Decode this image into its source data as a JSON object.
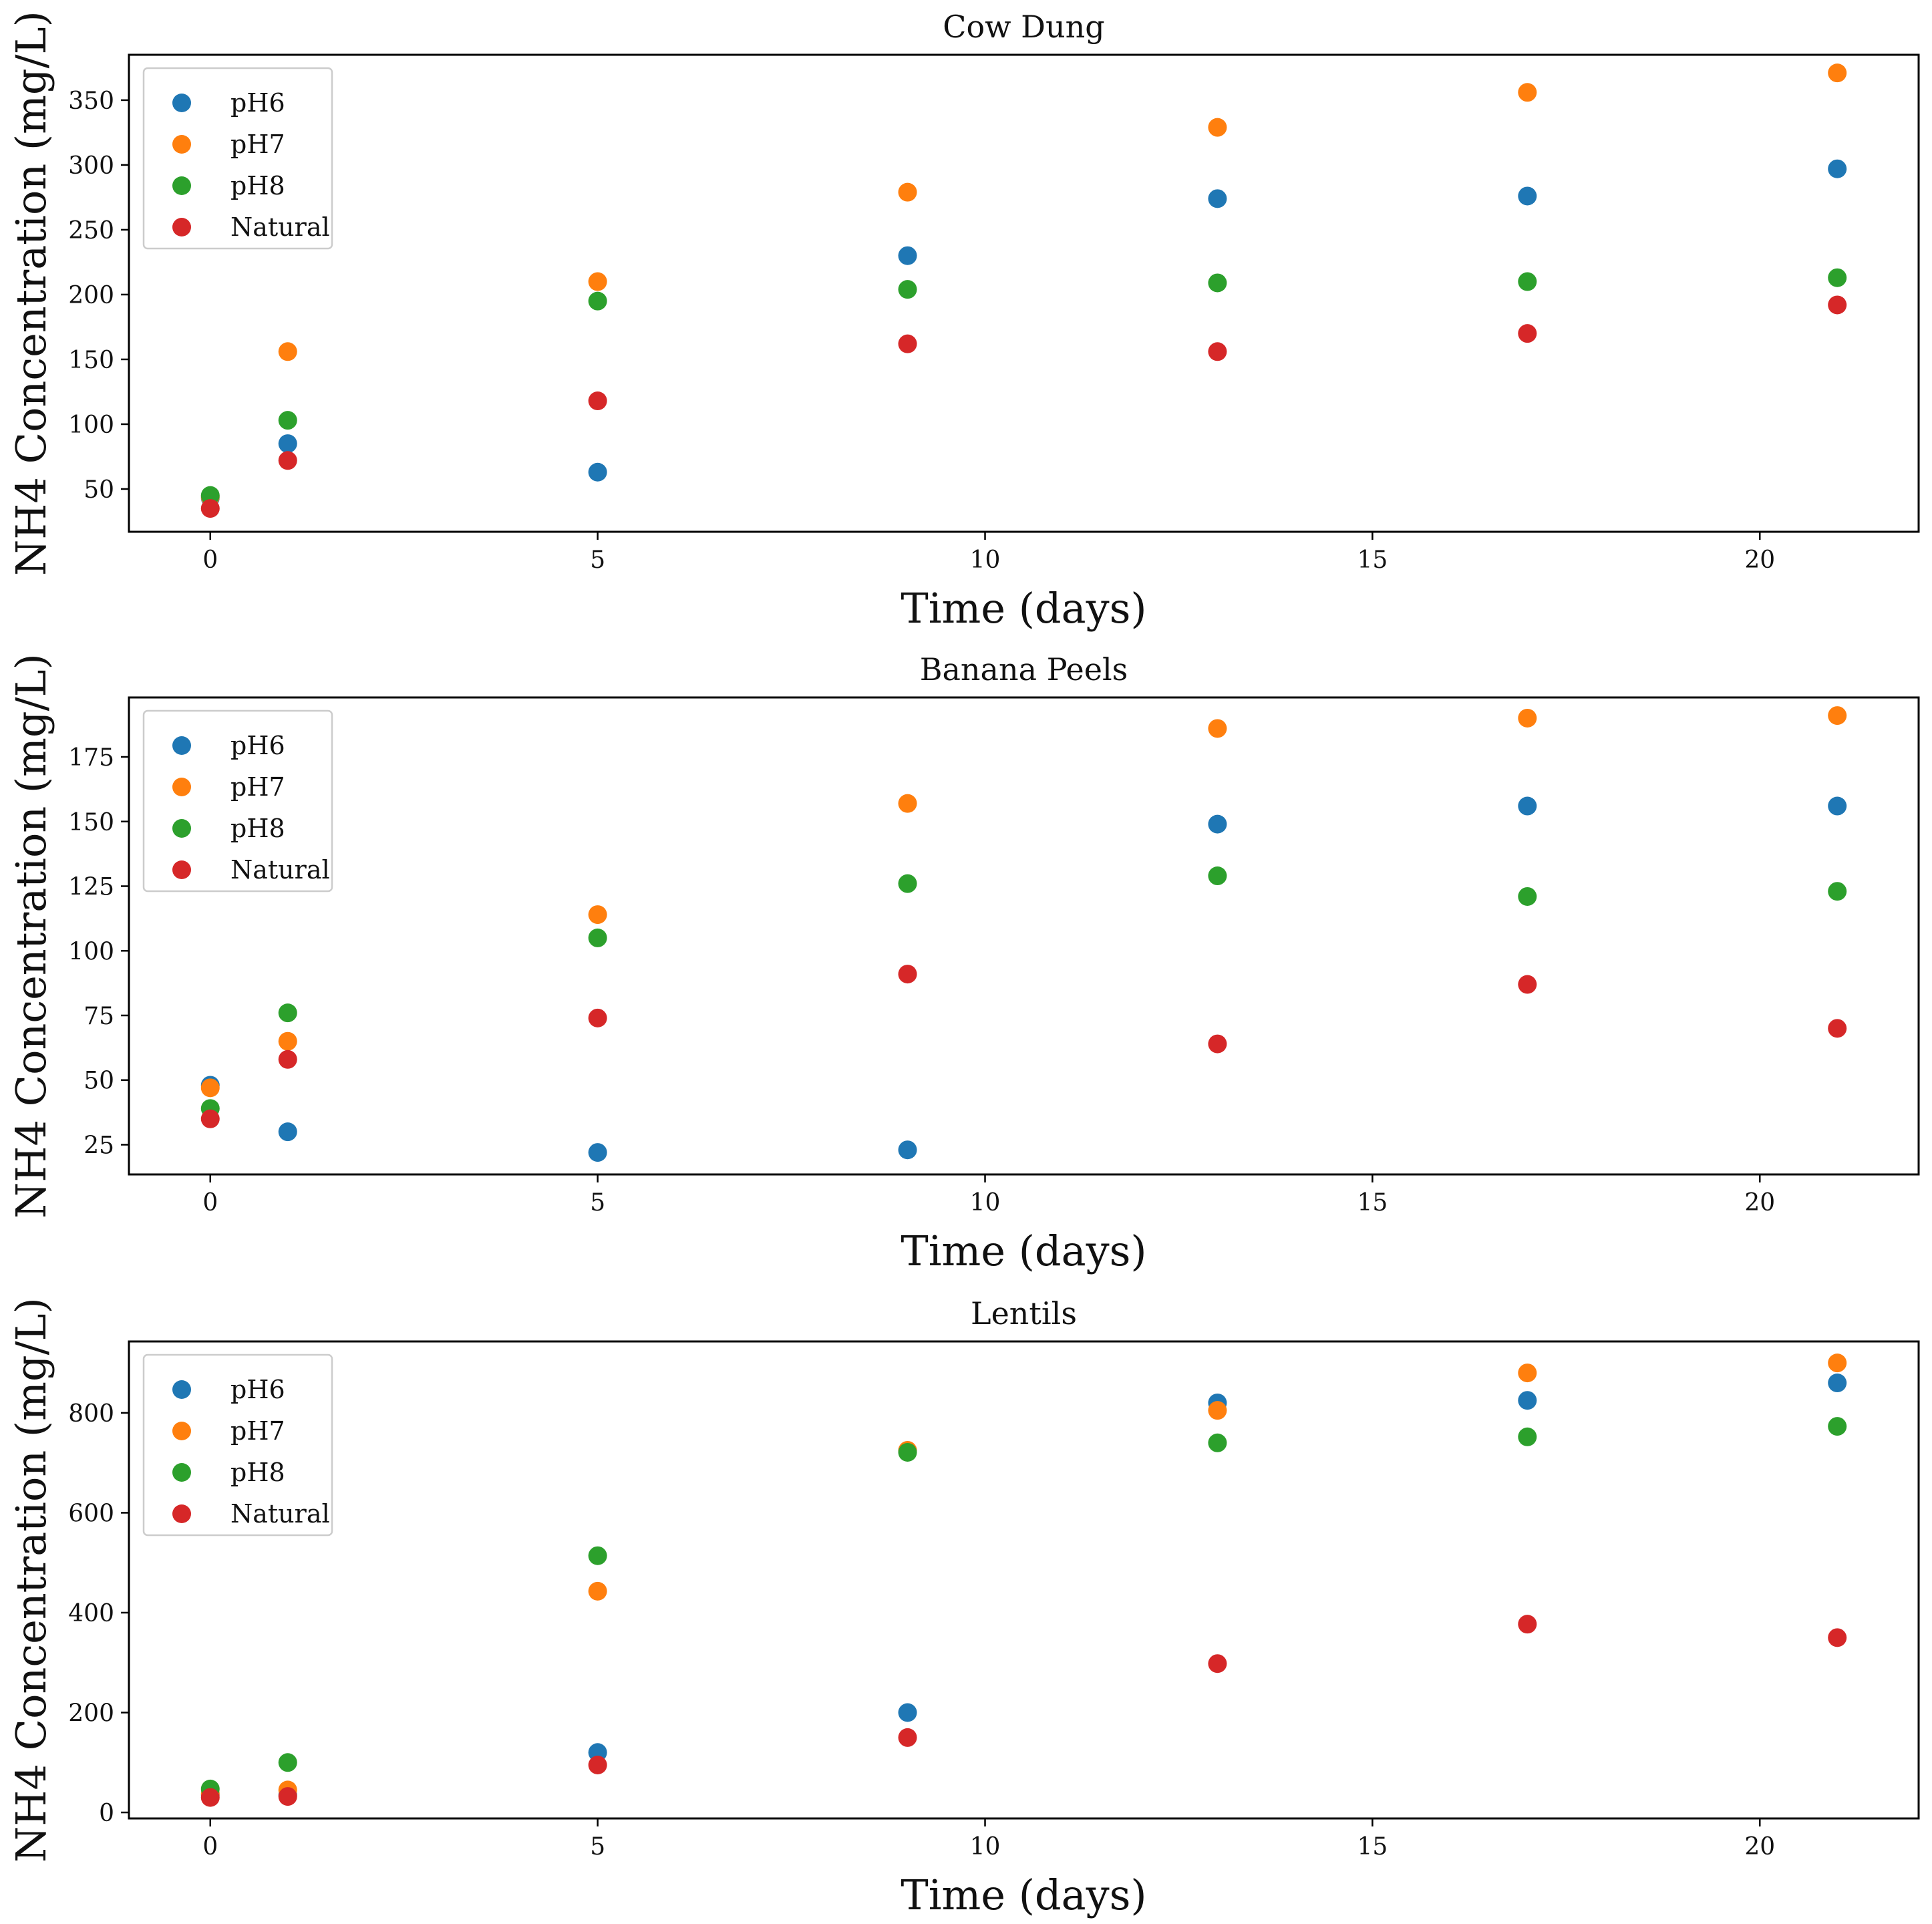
{
  "chart_data": [
    {
      "type": "scatter",
      "title": "Cow Dung",
      "xlabel": "Time (days)",
      "ylabel": "NH4 Concentration (mg/L)",
      "xlim": [
        -1.05,
        22.05
      ],
      "ylim": [
        17,
        385
      ],
      "xticks": [
        0,
        5,
        10,
        15,
        20
      ],
      "yticks": [
        50,
        100,
        150,
        200,
        250,
        300,
        350
      ],
      "legend_position": "top-left",
      "x": [
        0,
        1,
        5,
        9,
        13,
        17,
        21
      ],
      "series": [
        {
          "name": "pH6",
          "color": "#1f77b4",
          "values": [
            43,
            85,
            63,
            230,
            274,
            276,
            297
          ]
        },
        {
          "name": "pH7",
          "color": "#ff7f0e",
          "values": [
            44,
            156,
            210,
            279,
            329,
            356,
            371
          ]
        },
        {
          "name": "pH8",
          "color": "#2ca02c",
          "values": [
            45,
            103,
            195,
            204,
            209,
            210,
            213
          ]
        },
        {
          "name": "Natural",
          "color": "#d62728",
          "values": [
            35,
            72,
            118,
            162,
            156,
            170,
            192
          ]
        }
      ]
    },
    {
      "type": "scatter",
      "title": "Banana Peels",
      "xlabel": "Time (days)",
      "ylabel": "NH4 Concentration (mg/L)",
      "xlim": [
        -1.05,
        22.05
      ],
      "ylim": [
        13.5,
        198
      ],
      "xticks": [
        0,
        5,
        10,
        15,
        20
      ],
      "yticks": [
        25,
        50,
        75,
        100,
        125,
        150,
        175
      ],
      "legend_position": "top-left",
      "x": [
        0,
        1,
        5,
        9,
        13,
        17,
        21
      ],
      "series": [
        {
          "name": "pH6",
          "color": "#1f77b4",
          "values": [
            48,
            30,
            22,
            23,
            149,
            156,
            156
          ]
        },
        {
          "name": "pH7",
          "color": "#ff7f0e",
          "values": [
            47,
            65,
            114,
            157,
            186,
            190,
            191
          ]
        },
        {
          "name": "pH8",
          "color": "#2ca02c",
          "values": [
            39,
            76,
            105,
            126,
            129,
            121,
            123
          ]
        },
        {
          "name": "Natural",
          "color": "#d62728",
          "values": [
            35,
            58,
            74,
            91,
            64,
            87,
            70
          ]
        }
      ]
    },
    {
      "type": "scatter",
      "title": "Lentils",
      "xlabel": "Time (days)",
      "ylabel": "NH4 Concentration (mg/L)",
      "xlim": [
        -1.05,
        22.05
      ],
      "ylim": [
        -12,
        943
      ],
      "xticks": [
        0,
        5,
        10,
        15,
        20
      ],
      "yticks": [
        0,
        200,
        400,
        600,
        800
      ],
      "legend_position": "top-left",
      "x": [
        0,
        1,
        5,
        9,
        13,
        17,
        21
      ],
      "series": [
        {
          "name": "pH6",
          "color": "#1f77b4",
          "values": [
            35,
            35,
            120,
            200,
            820,
            825,
            860
          ]
        },
        {
          "name": "pH7",
          "color": "#ff7f0e",
          "values": [
            38,
            45,
            443,
            725,
            805,
            880,
            900
          ]
        },
        {
          "name": "pH8",
          "color": "#2ca02c",
          "values": [
            47,
            100,
            514,
            721,
            740,
            752,
            773
          ]
        },
        {
          "name": "Natural",
          "color": "#d62728",
          "values": [
            30,
            32,
            95,
            150,
            298,
            377,
            350
          ]
        }
      ]
    }
  ]
}
